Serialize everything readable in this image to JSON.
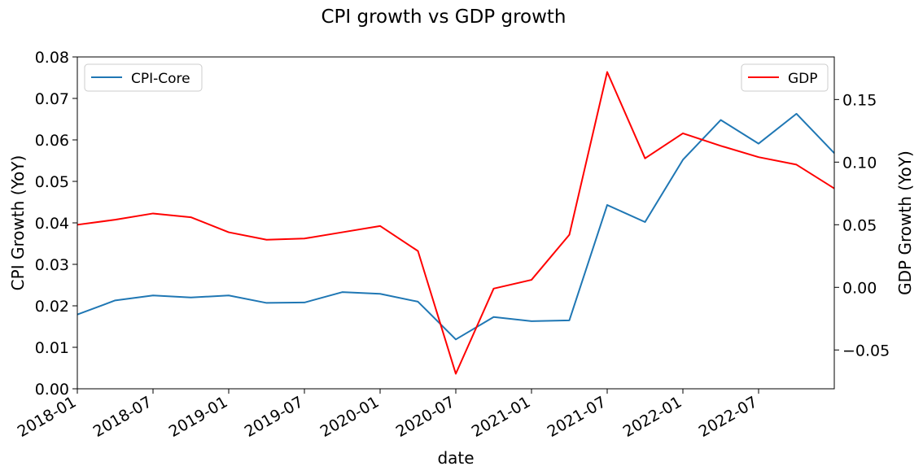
{
  "chart_data": {
    "type": "line",
    "title": "CPI growth vs GDP growth",
    "xlabel": "date",
    "x": [
      "2018-01",
      "2018-04",
      "2018-07",
      "2018-10",
      "2019-01",
      "2019-04",
      "2019-07",
      "2019-10",
      "2020-01",
      "2020-04",
      "2020-07",
      "2020-10",
      "2021-01",
      "2021-04",
      "2021-07",
      "2021-10",
      "2022-01",
      "2022-04",
      "2022-07",
      "2022-10",
      "2023-01"
    ],
    "x_tick_labels": [
      "2018-01",
      "2018-07",
      "2019-01",
      "2019-07",
      "2020-01",
      "2020-07",
      "2021-01",
      "2021-07",
      "2022-01",
      "2022-07"
    ],
    "left_axis": {
      "label": "CPI Growth (YoY)",
      "color": "#1f77b4",
      "ylim": [
        0.0,
        0.08
      ],
      "ticks": [
        0.0,
        0.01,
        0.02,
        0.03,
        0.04,
        0.05,
        0.06,
        0.07,
        0.08
      ],
      "tick_labels": [
        "0.00",
        "0.01",
        "0.02",
        "0.03",
        "0.04",
        "0.05",
        "0.06",
        "0.07",
        "0.08"
      ]
    },
    "right_axis": {
      "label": "GDP Growth (YoY)",
      "color": "#d62728",
      "ylim": [
        -0.081,
        0.184
      ],
      "ticks": [
        -0.05,
        0.0,
        0.05,
        0.1,
        0.15
      ],
      "tick_labels": [
        "−0.05",
        "0.00",
        "0.05",
        "0.10",
        "0.15"
      ]
    },
    "series": [
      {
        "name": "CPI-Core",
        "axis": "left",
        "color": "#1f77b4",
        "legend_position": "top-left",
        "values": [
          0.0179,
          0.0213,
          0.0225,
          0.022,
          0.0225,
          0.0207,
          0.0208,
          0.0233,
          0.0229,
          0.021,
          0.0119,
          0.0173,
          0.0163,
          0.0165,
          0.0443,
          0.0402,
          0.0552,
          0.0648,
          0.0591,
          0.0663,
          0.0568
        ]
      },
      {
        "name": "GDP",
        "axis": "right",
        "color": "#ff0000",
        "legend_position": "top-right",
        "values": [
          0.05,
          0.054,
          0.059,
          0.056,
          0.044,
          0.038,
          0.039,
          0.044,
          0.049,
          0.029,
          -0.069,
          -0.001,
          0.006,
          0.042,
          0.172,
          0.103,
          0.123,
          0.113,
          0.104,
          0.098,
          0.079
        ]
      }
    ]
  }
}
